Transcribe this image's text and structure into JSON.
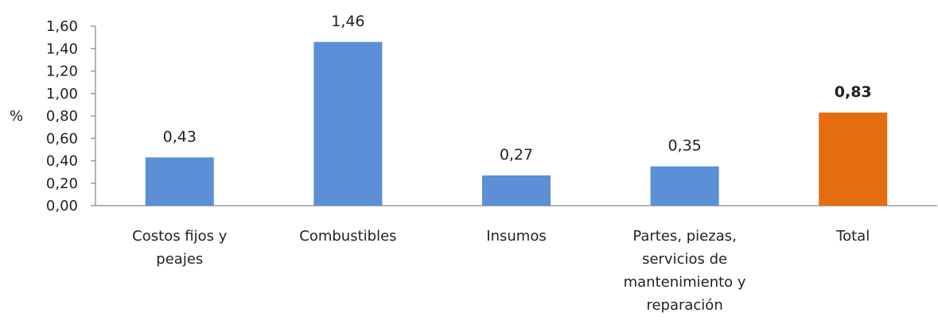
{
  "chart_data": {
    "type": "bar",
    "ylabel": "%",
    "ylim": [
      0,
      1.6
    ],
    "yticks": [
      "0,00",
      "0,20",
      "0,40",
      "0,60",
      "0,80",
      "1,00",
      "1,20",
      "1,40",
      "1,60"
    ],
    "grid": false,
    "legend": "none",
    "categories": [
      [
        "Costos fijos y",
        "peajes"
      ],
      [
        "Combustibles"
      ],
      [
        "Insumos"
      ],
      [
        "Partes, piezas,",
        "servicios de",
        "mantenimiento y",
        "reparación"
      ],
      [
        "Total"
      ]
    ],
    "values": [
      0.43,
      1.46,
      0.27,
      0.35,
      0.83
    ],
    "value_labels": [
      "0,43",
      "1,46",
      "0,27",
      "0,35",
      "0,83"
    ],
    "bold_labels": [
      false,
      false,
      false,
      false,
      true
    ],
    "colors": [
      "#5b8fd6",
      "#5b8fd6",
      "#5b8fd6",
      "#5b8fd6",
      "#e56d0f"
    ],
    "axis_color": "#9a9a9a"
  }
}
